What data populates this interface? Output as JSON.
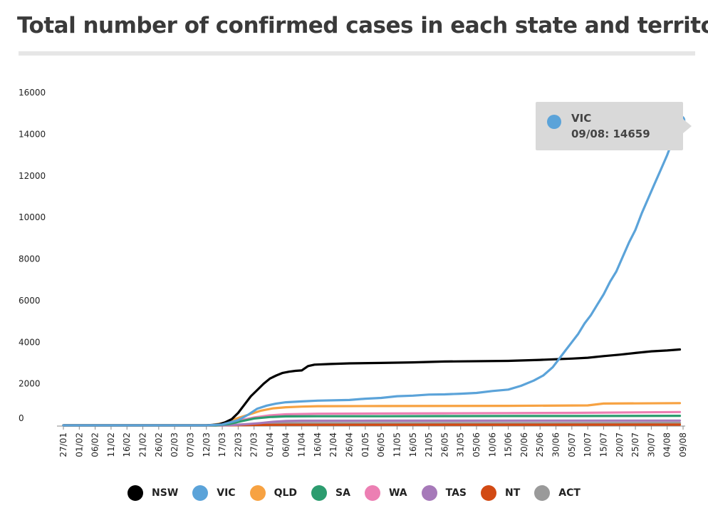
{
  "title": "Total number of confirmed cases in each state and territory",
  "tooltip": {
    "series": "VIC",
    "label": "09/08: 14659",
    "color": "#5ba3d9"
  },
  "chart_data": {
    "type": "line",
    "title": "Total number of confirmed cases in each state and territory",
    "xlabel": "",
    "ylabel": "",
    "ylim": [
      0,
      16000
    ],
    "yticks": [
      0,
      2000,
      4000,
      6000,
      8000,
      10000,
      12000,
      14000,
      16000
    ],
    "xtick_labels": [
      "27/01",
      "01/02",
      "06/02",
      "11/02",
      "16/02",
      "21/02",
      "26/02",
      "02/03",
      "07/03",
      "12/03",
      "17/03",
      "22/03",
      "27/03",
      "01/04",
      "06/04",
      "11/04",
      "16/04",
      "21/04",
      "26/04",
      "01/05",
      "06/05",
      "11/05",
      "16/05",
      "21/05",
      "26/05",
      "31/05",
      "05/06",
      "10/06",
      "15/06",
      "20/06",
      "25/06",
      "30/06",
      "05/07",
      "10/07",
      "15/07",
      "20/07",
      "25/07",
      "30/07",
      "04/08",
      "09/08"
    ],
    "grid": false,
    "legend_position": "bottom",
    "x_unit": "date (day index from 27/01, 5-day tick spacing)",
    "series": [
      {
        "name": "NSW",
        "color": "#000000",
        "points": [
          [
            0,
            0
          ],
          [
            40,
            0
          ],
          [
            45,
            0
          ],
          [
            47,
            20
          ],
          [
            49,
            50
          ],
          [
            51,
            150
          ],
          [
            53,
            300
          ],
          [
            55,
            600
          ],
          [
            57,
            1000
          ],
          [
            59,
            1400
          ],
          [
            61,
            1700
          ],
          [
            63,
            2000
          ],
          [
            65,
            2250
          ],
          [
            67,
            2400
          ],
          [
            69,
            2520
          ],
          [
            71,
            2580
          ],
          [
            73,
            2620
          ],
          [
            75,
            2640
          ],
          [
            77,
            2850
          ],
          [
            79,
            2920
          ],
          [
            84,
            2950
          ],
          [
            90,
            2980
          ],
          [
            100,
            3000
          ],
          [
            110,
            3030
          ],
          [
            120,
            3070
          ],
          [
            140,
            3100
          ],
          [
            150,
            3150
          ],
          [
            155,
            3180
          ],
          [
            160,
            3210
          ],
          [
            165,
            3250
          ],
          [
            170,
            3330
          ],
          [
            175,
            3400
          ],
          [
            180,
            3480
          ],
          [
            185,
            3560
          ],
          [
            190,
            3600
          ],
          [
            194,
            3650
          ]
        ]
      },
      {
        "name": "VIC",
        "color": "#5ba3d9",
        "points": [
          [
            0,
            0
          ],
          [
            45,
            0
          ],
          [
            50,
            40
          ],
          [
            55,
            250
          ],
          [
            58,
            500
          ],
          [
            61,
            800
          ],
          [
            64,
            950
          ],
          [
            67,
            1050
          ],
          [
            70,
            1110
          ],
          [
            75,
            1150
          ],
          [
            80,
            1190
          ],
          [
            90,
            1220
          ],
          [
            95,
            1280
          ],
          [
            100,
            1320
          ],
          [
            105,
            1400
          ],
          [
            110,
            1430
          ],
          [
            115,
            1480
          ],
          [
            120,
            1490
          ],
          [
            125,
            1520
          ],
          [
            130,
            1560
          ],
          [
            135,
            1650
          ],
          [
            140,
            1720
          ],
          [
            144,
            1900
          ],
          [
            148,
            2150
          ],
          [
            151,
            2400
          ],
          [
            154,
            2800
          ],
          [
            156,
            3200
          ],
          [
            158,
            3600
          ],
          [
            160,
            4000
          ],
          [
            162,
            4400
          ],
          [
            164,
            4900
          ],
          [
            166,
            5300
          ],
          [
            168,
            5800
          ],
          [
            170,
            6300
          ],
          [
            172,
            6900
          ],
          [
            174,
            7400
          ],
          [
            176,
            8100
          ],
          [
            178,
            8800
          ],
          [
            180,
            9400
          ],
          [
            182,
            10200
          ],
          [
            184,
            10900
          ],
          [
            186,
            11600
          ],
          [
            188,
            12300
          ],
          [
            190,
            13000
          ],
          [
            192,
            13800
          ],
          [
            194,
            14659
          ]
        ]
      },
      {
        "name": "QLD",
        "color": "#f7a242",
        "points": [
          [
            0,
            0
          ],
          [
            46,
            0
          ],
          [
            50,
            100
          ],
          [
            54,
            300
          ],
          [
            58,
            500
          ],
          [
            62,
            700
          ],
          [
            66,
            820
          ],
          [
            70,
            870
          ],
          [
            75,
            900
          ],
          [
            80,
            920
          ],
          [
            100,
            930
          ],
          [
            140,
            940
          ],
          [
            165,
            960
          ],
          [
            170,
            1050
          ],
          [
            194,
            1070
          ]
        ]
      },
      {
        "name": "SA",
        "color": "#2c9c6f",
        "points": [
          [
            0,
            0
          ],
          [
            48,
            0
          ],
          [
            52,
            60
          ],
          [
            56,
            200
          ],
          [
            60,
            330
          ],
          [
            65,
            400
          ],
          [
            70,
            430
          ],
          [
            80,
            440
          ],
          [
            100,
            440
          ],
          [
            120,
            445
          ],
          [
            140,
            450
          ],
          [
            160,
            450
          ],
          [
            194,
            460
          ]
        ]
      },
      {
        "name": "WA",
        "color": "#ec7fb3",
        "points": [
          [
            0,
            0
          ],
          [
            48,
            0
          ],
          [
            52,
            80
          ],
          [
            56,
            250
          ],
          [
            60,
            380
          ],
          [
            65,
            480
          ],
          [
            70,
            530
          ],
          [
            80,
            560
          ],
          [
            100,
            570
          ],
          [
            120,
            580
          ],
          [
            140,
            590
          ],
          [
            160,
            600
          ],
          [
            194,
            640
          ]
        ]
      },
      {
        "name": "TAS",
        "color": "#a679b9",
        "points": [
          [
            0,
            0
          ],
          [
            50,
            0
          ],
          [
            54,
            20
          ],
          [
            58,
            60
          ],
          [
            62,
            110
          ],
          [
            66,
            170
          ],
          [
            70,
            210
          ],
          [
            75,
            222
          ],
          [
            100,
            226
          ],
          [
            150,
            228
          ],
          [
            194,
            230
          ]
        ]
      },
      {
        "name": "NT",
        "color": "#d24a13",
        "points": [
          [
            0,
            0
          ],
          [
            52,
            0
          ],
          [
            58,
            10
          ],
          [
            62,
            20
          ],
          [
            70,
            28
          ],
          [
            100,
            29
          ],
          [
            150,
            30
          ],
          [
            194,
            33
          ]
        ]
      },
      {
        "name": "ACT",
        "color": "#9a9a9a",
        "points": [
          [
            0,
            0
          ],
          [
            50,
            0
          ],
          [
            55,
            30
          ],
          [
            60,
            70
          ],
          [
            65,
            95
          ],
          [
            70,
            105
          ],
          [
            80,
            107
          ],
          [
            150,
            108
          ],
          [
            194,
            115
          ]
        ]
      }
    ]
  }
}
